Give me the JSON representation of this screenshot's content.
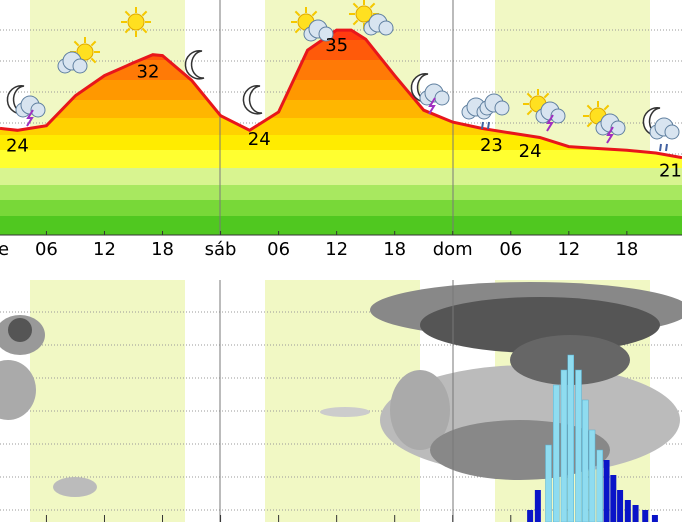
{
  "chart_data": [
    {
      "type": "line",
      "xlim": [
        1.2,
        71.7
      ],
      "ylim": [
        12.5,
        38.3
      ],
      "xticks": [
        {
          "value": 0,
          "label": "e"
        },
        {
          "value": 6,
          "label": "06"
        },
        {
          "value": 12,
          "label": "12"
        },
        {
          "value": 18,
          "label": "18"
        },
        {
          "value": 24,
          "label": "sáb"
        },
        {
          "value": 30,
          "label": "06"
        },
        {
          "value": 36,
          "label": "12"
        },
        {
          "value": 42,
          "label": "18"
        },
        {
          "value": 48,
          "label": "dom"
        },
        {
          "value": 54,
          "label": "06"
        },
        {
          "value": 60,
          "label": "12"
        },
        {
          "value": 66,
          "label": "18"
        }
      ],
      "series": [
        {
          "color": "#e8161b",
          "x": [
            1.2,
            3,
            6,
            9,
            12,
            15,
            17,
            18,
            21,
            24,
            27,
            30,
            33,
            36,
            37.5,
            39,
            42,
            45,
            48,
            51,
            54,
            57,
            60,
            63,
            66,
            69,
            71.7
          ],
          "values": [
            24.2,
            24,
            24.5,
            27.8,
            30,
            31.4,
            32.3,
            32.2,
            29.5,
            25.6,
            24,
            26,
            32.8,
            35,
            35,
            34,
            30,
            26.2,
            24.9,
            24.2,
            23.7,
            23.2,
            22.2,
            22,
            21.8,
            21.5,
            21
          ]
        }
      ],
      "labels": {
        "x": [
          3,
          16.5,
          28,
          36,
          52,
          56,
          70.5
        ],
        "values": [
          24,
          32,
          24,
          35,
          23,
          24,
          21
        ]
      }
    },
    {
      "type": "bar",
      "xlim": [
        1.2,
        71.7
      ],
      "ylim": [
        0,
        170
      ],
      "series": [
        {
          "color": "#8fdcf0",
          "x": [
            57.9,
            58.7,
            59.5,
            60.2,
            61,
            61.7,
            62.4,
            63.2
          ],
          "values": [
            77,
            137,
            152,
            167,
            152,
            122,
            92,
            72
          ]
        },
        {
          "color": "#0a14c8",
          "x": [
            56,
            56.8,
            63.9,
            64.6,
            65.3,
            66.1,
            66.9,
            67.9,
            68.9
          ],
          "values": [
            12,
            32,
            62,
            47,
            32,
            22,
            17,
            12,
            7
          ]
        }
      ]
    }
  ]
}
